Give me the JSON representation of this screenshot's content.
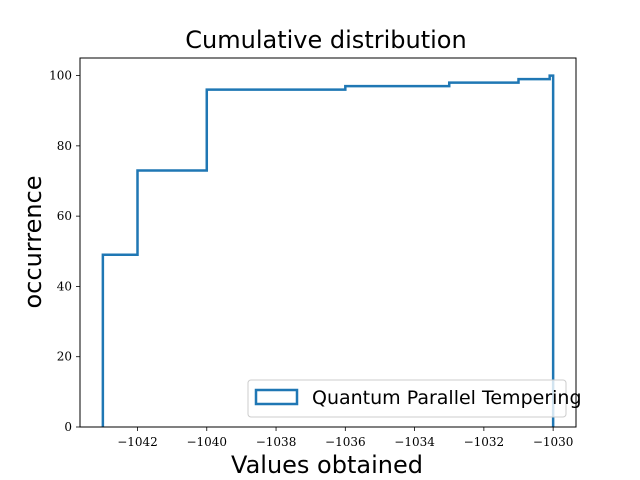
{
  "chart_data": {
    "type": "histogram-step",
    "title": "Cumulative distribution",
    "xlabel": "Values obtained",
    "ylabel": "occurrence",
    "xlim": [
      -1043.66,
      -1029.34
    ],
    "ylim": [
      0,
      105
    ],
    "xticks": [
      -1042,
      -1040,
      -1038,
      -1036,
      -1034,
      -1032,
      -1030
    ],
    "xtick_labels": [
      "−1042",
      "−1040",
      "−1038",
      "−1036",
      "−1034",
      "−1032",
      "−1030"
    ],
    "yticks": [
      0,
      20,
      40,
      60,
      80,
      100
    ],
    "ytick_labels": [
      "0",
      "20",
      "40",
      "60",
      "80",
      "100"
    ],
    "grid": false,
    "legend": {
      "position": "lower-right",
      "entries": [
        "Quantum Parallel Tempering"
      ]
    },
    "series": [
      {
        "name": "Quantum Parallel Tempering",
        "color": "#1f77b4",
        "bin_edges": [
          -1043,
          -1042,
          -1040,
          -1036,
          -1033,
          -1031,
          -1030.1,
          -1030
        ],
        "cumulative_counts": [
          49,
          73,
          96,
          97,
          98,
          99,
          100
        ]
      }
    ]
  }
}
